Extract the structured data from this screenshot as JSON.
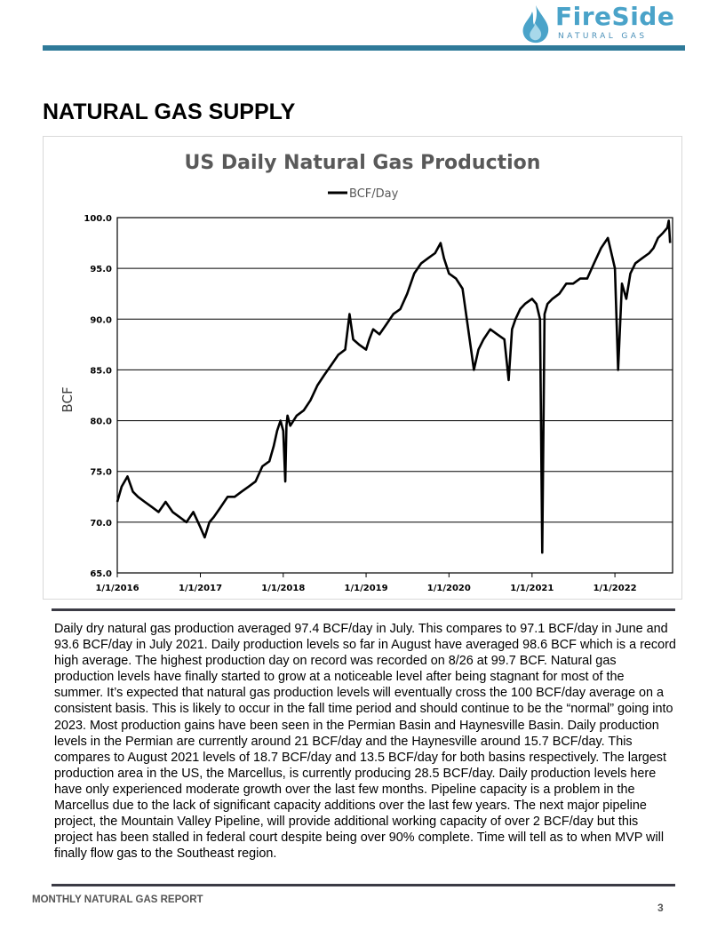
{
  "header": {
    "logo_name": "FireSide",
    "logo_tagline": "NATURAL GAS",
    "logo_icon": "flame-droplet-icon",
    "accent_color": "#2f7a99"
  },
  "section_title": "NATURAL GAS SUPPLY",
  "chart_data": {
    "type": "line",
    "title": "US Daily Natural Gas Production",
    "ylabel": "BCF",
    "xlabel": "",
    "legend_position": "top-center",
    "grid": true,
    "ylim": [
      65.0,
      100.0
    ],
    "yticks": [
      "65.0",
      "70.0",
      "75.0",
      "80.0",
      "85.0",
      "90.0",
      "95.0",
      "100.0"
    ],
    "xticks": [
      "1/1/2016",
      "1/1/2017",
      "1/1/2018",
      "1/1/2019",
      "1/1/2020",
      "1/1/2021",
      "1/1/2022"
    ],
    "series": [
      {
        "name": "BCF/Day",
        "color": "#000000",
        "x": [
          "2016-01-01",
          "2016-01-20",
          "2016-02-15",
          "2016-03-10",
          "2016-04-01",
          "2016-05-01",
          "2016-06-01",
          "2016-07-01",
          "2016-08-01",
          "2016-09-01",
          "2016-10-01",
          "2016-11-01",
          "2016-12-01",
          "2017-01-01",
          "2017-01-20",
          "2017-02-10",
          "2017-03-01",
          "2017-04-01",
          "2017-05-01",
          "2017-06-01",
          "2017-07-01",
          "2017-08-01",
          "2017-09-01",
          "2017-10-01",
          "2017-11-01",
          "2017-11-20",
          "2017-12-05",
          "2017-12-20",
          "2018-01-01",
          "2018-01-10",
          "2018-01-15",
          "2018-01-20",
          "2018-02-01",
          "2018-03-01",
          "2018-04-01",
          "2018-05-01",
          "2018-06-01",
          "2018-07-01",
          "2018-08-01",
          "2018-09-01",
          "2018-10-01",
          "2018-10-20",
          "2018-11-05",
          "2018-12-01",
          "2019-01-01",
          "2019-01-15",
          "2019-02-01",
          "2019-03-01",
          "2019-04-01",
          "2019-05-01",
          "2019-06-01",
          "2019-07-01",
          "2019-08-01",
          "2019-09-01",
          "2019-10-01",
          "2019-11-01",
          "2019-11-25",
          "2019-12-10",
          "2020-01-01",
          "2020-02-01",
          "2020-03-01",
          "2020-04-01",
          "2020-04-20",
          "2020-05-10",
          "2020-06-01",
          "2020-07-01",
          "2020-08-01",
          "2020-09-01",
          "2020-09-20",
          "2020-10-05",
          "2020-10-20",
          "2020-11-10",
          "2020-12-01",
          "2021-01-01",
          "2021-01-20",
          "2021-02-05",
          "2021-02-15",
          "2021-02-25",
          "2021-03-10",
          "2021-04-01",
          "2021-05-01",
          "2021-06-01",
          "2021-07-01",
          "2021-08-01",
          "2021-09-01",
          "2021-10-01",
          "2021-11-01",
          "2021-12-01",
          "2022-01-01",
          "2022-01-15",
          "2022-02-01",
          "2022-02-20",
          "2022-03-10",
          "2022-04-01",
          "2022-05-01",
          "2022-06-01",
          "2022-06-20",
          "2022-07-10",
          "2022-08-01",
          "2022-08-20",
          "2022-08-26",
          "2022-09-01"
        ],
        "values": [
          72.0,
          73.5,
          74.5,
          73.0,
          72.5,
          72.0,
          71.5,
          71.0,
          72.0,
          71.0,
          70.5,
          70.0,
          71.0,
          69.5,
          68.5,
          70.0,
          70.5,
          71.5,
          72.5,
          72.5,
          73.0,
          73.5,
          74.0,
          75.5,
          76.0,
          77.5,
          79.0,
          80.0,
          79.0,
          74.0,
          79.5,
          80.5,
          79.5,
          80.5,
          81.0,
          82.0,
          83.5,
          84.5,
          85.5,
          86.5,
          87.0,
          90.5,
          88.0,
          87.5,
          87.0,
          88.0,
          89.0,
          88.5,
          89.5,
          90.5,
          91.0,
          92.5,
          94.5,
          95.5,
          96.0,
          96.5,
          97.5,
          96.0,
          94.5,
          94.0,
          93.0,
          88.0,
          85.0,
          87.0,
          88.0,
          89.0,
          88.5,
          88.0,
          84.0,
          89.0,
          90.0,
          91.0,
          91.5,
          92.0,
          91.5,
          90.0,
          67.0,
          90.5,
          91.5,
          92.0,
          92.5,
          93.5,
          93.5,
          94.0,
          94.0,
          95.5,
          97.0,
          98.0,
          95.0,
          85.0,
          93.5,
          92.0,
          94.5,
          95.5,
          96.0,
          96.5,
          97.0,
          98.0,
          98.5,
          99.0,
          99.7,
          97.5
        ]
      }
    ]
  },
  "body_text": "Daily dry natural gas production averaged 97.4 BCF/day in July.  This compares to 97.1 BCF/day in June and 93.6 BCF/day in July 2021.  Daily production levels so far in August have averaged 98.6 BCF which is a record high average.  The highest production day on record was recorded on 8/26 at 99.7 BCF.  Natural gas production levels have finally started to grow at a noticeable level after being stagnant for most of the summer.  It’s expected that natural gas production levels will eventually cross the 100 BCF/day average on a consistent basis.  This is likely to occur in the fall time period and should continue to be the “normal” going into 2023.  Most production gains have been seen in the Permian Basin and Haynesville Basin.  Daily production levels in the Permian are currently around 21 BCF/day and the Haynesville around 15.7 BCF/day.  This compares to August 2021 levels of 18.7 BCF/day and 13.5 BCF/day for both basins respectively. The largest production area in the US, the Marcellus, is currently producing 28.5 BCF/day.  Daily production levels here have only experienced moderate growth over the last few months.  Pipeline capacity is a problem in the Marcellus due to the lack of significant capacity additions over the last few years.  The next major pipeline project, the Mountain Valley Pipeline, will provide additional working capacity of over 2 BCF/day but this project has been stalled in federal court despite being over 90% complete.  Time will tell as to when MVP will finally flow gas to the Southeast region.",
  "footer": {
    "report_name": "MONTHLY NATURAL GAS REPORT",
    "page_number": "3"
  }
}
